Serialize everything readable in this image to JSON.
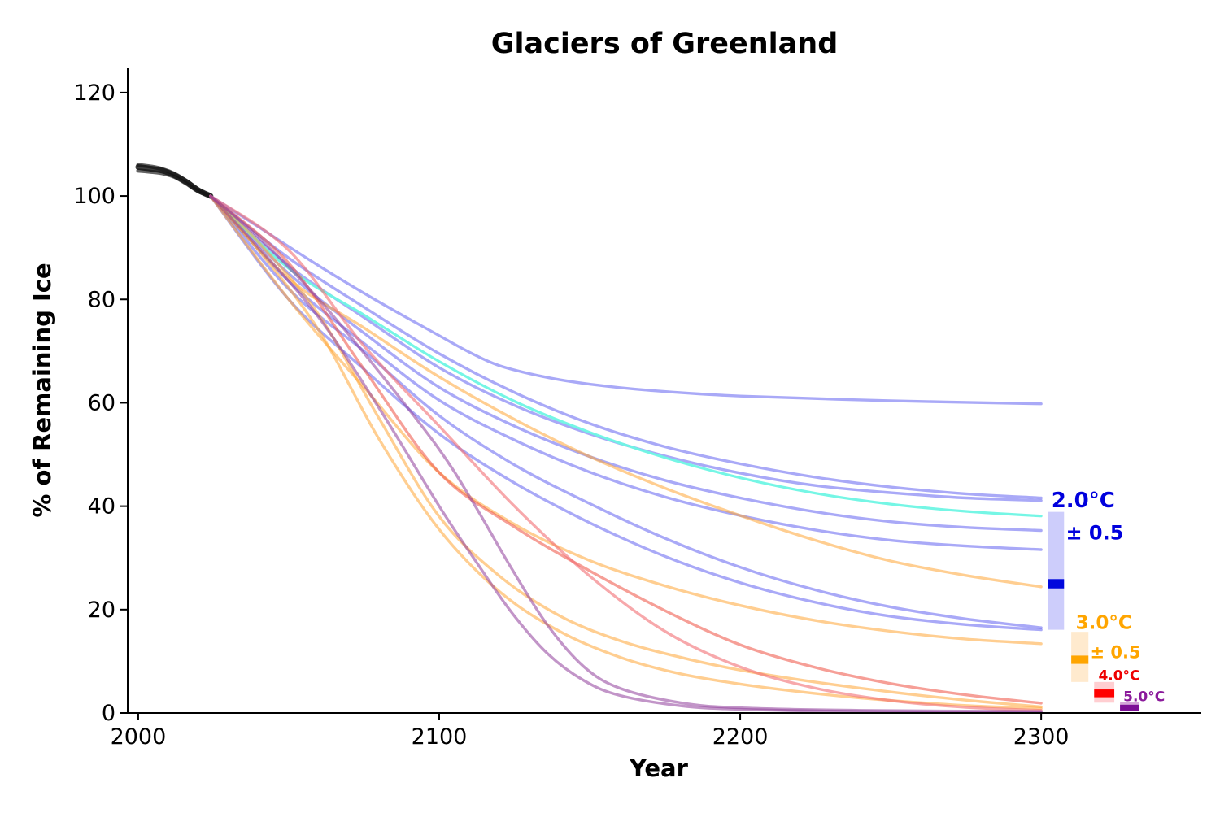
{
  "chart_data": {
    "type": "line",
    "title": "Glaciers of Greenland",
    "xlabel": "Year",
    "ylabel": "% of Remaining Ice",
    "xlim": [
      1996.5,
      2353.2
    ],
    "ylim": [
      0,
      124.7
    ],
    "x_ticks": [
      2000,
      2100,
      2200,
      2300
    ],
    "y_ticks": [
      0,
      20,
      40,
      60,
      80,
      100,
      120
    ],
    "grid": false,
    "axis_color": "#000000",
    "tick_font_size": 27,
    "series": [
      {
        "name": "historical-1",
        "scenario": "historical",
        "color": "rgba(15,15,15,0.8)",
        "width": 7,
        "points": [
          [
            2000,
            105.6
          ],
          [
            2004,
            105.3
          ],
          [
            2008,
            104.9
          ],
          [
            2012,
            104.0
          ],
          [
            2016,
            102.7
          ],
          [
            2020,
            101.1
          ],
          [
            2024,
            100
          ]
        ]
      },
      {
        "name": "historical-2",
        "scenario": "historical",
        "color": "rgba(15,15,15,0.65)",
        "width": 5,
        "points": [
          [
            2000,
            106.0
          ],
          [
            2004,
            105.7
          ],
          [
            2008,
            105.2
          ],
          [
            2012,
            104.3
          ],
          [
            2016,
            102.9
          ],
          [
            2020,
            101.2
          ],
          [
            2024,
            100
          ]
        ]
      },
      {
        "name": "historical-3",
        "scenario": "historical",
        "color": "rgba(15,15,15,0.65)",
        "width": 5,
        "points": [
          [
            2000,
            104.9
          ],
          [
            2004,
            104.7
          ],
          [
            2008,
            104.4
          ],
          [
            2012,
            103.7
          ],
          [
            2016,
            102.4
          ],
          [
            2020,
            100.9
          ],
          [
            2024,
            100
          ]
        ]
      },
      {
        "name": "2.0C-run-1",
        "scenario": "2.0C",
        "color": "rgba(98,98,240,0.55)",
        "width": 3.4,
        "points": [
          [
            2024,
            100
          ],
          [
            2040,
            94
          ],
          [
            2060,
            86.5
          ],
          [
            2080,
            79.5
          ],
          [
            2100,
            73
          ],
          [
            2110,
            69.8
          ],
          [
            2120,
            67.2
          ],
          [
            2135,
            65.0
          ],
          [
            2150,
            63.6
          ],
          [
            2170,
            62.4
          ],
          [
            2200,
            61.3
          ],
          [
            2250,
            60.4
          ],
          [
            2300,
            59.8
          ]
        ]
      },
      {
        "name": "2.0C-run-2",
        "scenario": "2.0C",
        "color": "rgba(98,98,240,0.55)",
        "width": 3.4,
        "points": [
          [
            2024,
            100
          ],
          [
            2050,
            88
          ],
          [
            2075,
            78.5
          ],
          [
            2100,
            69.5
          ],
          [
            2125,
            62
          ],
          [
            2150,
            56
          ],
          [
            2175,
            51.5
          ],
          [
            2200,
            48.2
          ],
          [
            2225,
            45.6
          ],
          [
            2250,
            43.7
          ],
          [
            2275,
            42.4
          ],
          [
            2300,
            41.6
          ]
        ]
      },
      {
        "name": "2.0C-run-3",
        "scenario": "2.0C",
        "color": "rgba(98,98,240,0.55)",
        "width": 3.4,
        "points": [
          [
            2024,
            100
          ],
          [
            2050,
            86.5
          ],
          [
            2075,
            76.5
          ],
          [
            2100,
            66.8
          ],
          [
            2125,
            59.5
          ],
          [
            2150,
            54
          ],
          [
            2175,
            49.7
          ],
          [
            2200,
            46.4
          ],
          [
            2225,
            44
          ],
          [
            2250,
            42.6
          ],
          [
            2275,
            41.6
          ],
          [
            2300,
            41.1
          ]
        ]
      },
      {
        "name": "2.0C-run-4",
        "scenario": "2.0C",
        "color": "rgba(98,98,240,0.55)",
        "width": 3.4,
        "points": [
          [
            2024,
            100
          ],
          [
            2050,
            85
          ],
          [
            2075,
            73.5
          ],
          [
            2100,
            63
          ],
          [
            2125,
            55.5
          ],
          [
            2150,
            49.6
          ],
          [
            2175,
            45
          ],
          [
            2200,
            41.6
          ],
          [
            2225,
            38.9
          ],
          [
            2250,
            37
          ],
          [
            2275,
            35.9
          ],
          [
            2300,
            35.3
          ]
        ]
      },
      {
        "name": "2.0C-run-5",
        "scenario": "2.0C",
        "color": "rgba(98,98,240,0.55)",
        "width": 3.4,
        "points": [
          [
            2024,
            100
          ],
          [
            2050,
            83.5
          ],
          [
            2075,
            71.5
          ],
          [
            2100,
            60.5
          ],
          [
            2125,
            52.8
          ],
          [
            2150,
            46.6
          ],
          [
            2175,
            41.8
          ],
          [
            2200,
            38.2
          ],
          [
            2225,
            35.4
          ],
          [
            2250,
            33.4
          ],
          [
            2275,
            32.3
          ],
          [
            2300,
            31.6
          ]
        ]
      },
      {
        "name": "2.0C-run-6",
        "scenario": "2.0C",
        "color": "rgba(98,98,240,0.55)",
        "width": 3.4,
        "points": [
          [
            2024,
            100
          ],
          [
            2050,
            82
          ],
          [
            2075,
            70
          ],
          [
            2100,
            57.5
          ],
          [
            2125,
            48
          ],
          [
            2150,
            40.5
          ],
          [
            2175,
            33.8
          ],
          [
            2200,
            28.2
          ],
          [
            2225,
            23.8
          ],
          [
            2250,
            20.5
          ],
          [
            2275,
            18.2
          ],
          [
            2300,
            16.5
          ]
        ]
      },
      {
        "name": "2.0C-run-7",
        "scenario": "2.0C",
        "color": "rgba(98,98,240,0.55)",
        "width": 3.4,
        "points": [
          [
            2024,
            100
          ],
          [
            2050,
            80
          ],
          [
            2075,
            66.5
          ],
          [
            2100,
            54
          ],
          [
            2125,
            44.5
          ],
          [
            2150,
            36.8
          ],
          [
            2175,
            30.3
          ],
          [
            2200,
            25.2
          ],
          [
            2225,
            21.4
          ],
          [
            2250,
            18.7
          ],
          [
            2275,
            17.1
          ],
          [
            2300,
            16.1
          ]
        ]
      },
      {
        "name": "2.0C-run-cyan",
        "scenario": "2.0C",
        "color": "rgba(110,246,228,0.95)",
        "width": 3.2,
        "points": [
          [
            2024,
            100
          ],
          [
            2050,
            86
          ],
          [
            2075,
            77
          ],
          [
            2100,
            68
          ],
          [
            2125,
            60.3
          ],
          [
            2150,
            54.3
          ],
          [
            2175,
            49.4
          ],
          [
            2200,
            45.5
          ],
          [
            2225,
            42.5
          ],
          [
            2250,
            40.4
          ],
          [
            2275,
            39
          ],
          [
            2300,
            38.1
          ]
        ]
      },
      {
        "name": "3.0C-run-1",
        "scenario": "3.0C",
        "color": "rgba(255,165,55,0.55)",
        "width": 3.4,
        "points": [
          [
            2024,
            100
          ],
          [
            2050,
            84
          ],
          [
            2075,
            74.5
          ],
          [
            2100,
            65
          ],
          [
            2125,
            56.8
          ],
          [
            2150,
            49.6
          ],
          [
            2175,
            43.5
          ],
          [
            2200,
            38.2
          ],
          [
            2225,
            33.4
          ],
          [
            2250,
            29.4
          ],
          [
            2275,
            26.6
          ],
          [
            2300,
            24.4
          ]
        ]
      },
      {
        "name": "3.0C-run-2",
        "scenario": "3.0C",
        "color": "rgba(255,165,55,0.55)",
        "width": 3.4,
        "points": [
          [
            2024,
            100
          ],
          [
            2050,
            80
          ],
          [
            2075,
            63
          ],
          [
            2100,
            46.5
          ],
          [
            2125,
            36.5
          ],
          [
            2150,
            29.5
          ],
          [
            2175,
            24.6
          ],
          [
            2200,
            20.8
          ],
          [
            2225,
            17.9
          ],
          [
            2250,
            15.8
          ],
          [
            2275,
            14.3
          ],
          [
            2300,
            13.4
          ]
        ]
      },
      {
        "name": "3.0C-run-3",
        "scenario": "3.0C",
        "color": "rgba(255,165,55,0.55)",
        "width": 3.4,
        "points": [
          [
            2024,
            100
          ],
          [
            2040,
            91
          ],
          [
            2060,
            77
          ],
          [
            2080,
            57
          ],
          [
            2100,
            38
          ],
          [
            2120,
            26.5
          ],
          [
            2140,
            18.8
          ],
          [
            2160,
            14
          ],
          [
            2180,
            10.8
          ],
          [
            2200,
            8.3
          ],
          [
            2220,
            6.4
          ],
          [
            2240,
            4.8
          ],
          [
            2260,
            3.4
          ],
          [
            2280,
            2.2
          ],
          [
            2300,
            1.2
          ]
        ]
      },
      {
        "name": "3.0C-run-4",
        "scenario": "3.0C",
        "color": "rgba(255,165,55,0.55)",
        "width": 3.4,
        "points": [
          [
            2024,
            100
          ],
          [
            2040,
            89.5
          ],
          [
            2060,
            74
          ],
          [
            2080,
            53
          ],
          [
            2100,
            35.5
          ],
          [
            2120,
            23.5
          ],
          [
            2140,
            15.8
          ],
          [
            2160,
            10.8
          ],
          [
            2180,
            7.6
          ],
          [
            2200,
            5.6
          ],
          [
            2220,
            4.1
          ],
          [
            2240,
            2.9
          ],
          [
            2260,
            2.0
          ],
          [
            2280,
            1.3
          ],
          [
            2300,
            0.9
          ]
        ]
      },
      {
        "name": "4.0C-run-1",
        "scenario": "4.0C",
        "color": "rgba(238,80,65,0.55)",
        "width": 3.4,
        "points": [
          [
            2024,
            100
          ],
          [
            2050,
            87
          ],
          [
            2075,
            66.5
          ],
          [
            2100,
            46.5
          ],
          [
            2125,
            36
          ],
          [
            2150,
            27.5
          ],
          [
            2175,
            19.8
          ],
          [
            2200,
            13.2
          ],
          [
            2225,
            8.8
          ],
          [
            2250,
            5.7
          ],
          [
            2275,
            3.5
          ],
          [
            2300,
            1.9
          ]
        ]
      },
      {
        "name": "4.0C-run-2",
        "scenario": "4.0C",
        "color": "rgba(242,110,115,0.6)",
        "width": 3.4,
        "points": [
          [
            2024,
            100
          ],
          [
            2050,
            89.5
          ],
          [
            2075,
            71
          ],
          [
            2100,
            55.5
          ],
          [
            2125,
            40
          ],
          [
            2150,
            26.5
          ],
          [
            2175,
            15.8
          ],
          [
            2200,
            8.9
          ],
          [
            2225,
            4.8
          ],
          [
            2250,
            2.4
          ],
          [
            2275,
            1.1
          ],
          [
            2300,
            0.5
          ]
        ]
      },
      {
        "name": "5.0C-run-1",
        "scenario": "5.0C",
        "color": "rgba(143,62,155,0.55)",
        "width": 3.4,
        "points": [
          [
            2024,
            100
          ],
          [
            2040,
            92
          ],
          [
            2060,
            80
          ],
          [
            2080,
            66
          ],
          [
            2100,
            51
          ],
          [
            2112,
            40
          ],
          [
            2124,
            28
          ],
          [
            2136,
            17
          ],
          [
            2148,
            9
          ],
          [
            2160,
            4.8
          ],
          [
            2180,
            2.0
          ],
          [
            2200,
            1.0
          ],
          [
            2240,
            0.5
          ],
          [
            2300,
            0.3
          ]
        ]
      },
      {
        "name": "5.0C-run-2",
        "scenario": "5.0C",
        "color": "rgba(143,62,155,0.55)",
        "width": 3.4,
        "points": [
          [
            2024,
            100
          ],
          [
            2040,
            90
          ],
          [
            2060,
            76.5
          ],
          [
            2080,
            59
          ],
          [
            2100,
            40
          ],
          [
            2112,
            29.5
          ],
          [
            2124,
            19.5
          ],
          [
            2136,
            11.5
          ],
          [
            2148,
            6.3
          ],
          [
            2160,
            3.4
          ],
          [
            2180,
            1.4
          ],
          [
            2200,
            0.7
          ],
          [
            2240,
            0.3
          ],
          [
            2300,
            0.15
          ]
        ]
      }
    ],
    "annotations": [
      {
        "name": "2.0C",
        "label": "2.0°C",
        "pm_label": "± 0.5",
        "text_color": "#0000dd",
        "band_color": "rgba(123,123,245,0.38)",
        "mean_color": "#0008dd",
        "years": [
          2302.2,
          2307.6
        ],
        "range": [
          16.1,
          38.9
        ],
        "mean": 25.0,
        "mean_half_height": 0.9,
        "label_pos": {
          "year": 2303.4,
          "value": 39.8
        },
        "label_size": 26,
        "pm_pos": {
          "year": 2308.2,
          "value": 33.6
        },
        "pm_size": 24
      },
      {
        "name": "3.0C",
        "label": "3.0°C",
        "pm_label": "± 0.5",
        "text_color": "#ffa500",
        "band_color": "rgba(255,170,60,0.25)",
        "mean_color": "#ffa500",
        "years": [
          2310.0,
          2315.7
        ],
        "range": [
          6.0,
          15.7
        ],
        "mean": 10.3,
        "mean_half_height": 0.8,
        "label_pos": {
          "year": 2311.5,
          "value": 16.3
        },
        "label_size": 23,
        "pm_pos": {
          "year": 2316.3,
          "value": 10.6
        },
        "pm_size": 21
      },
      {
        "name": "4.0C",
        "label": "4.0°C",
        "pm_label": null,
        "text_color": "#ee0000",
        "band_color": "rgba(255,80,90,0.28)",
        "mean_color": "#ff0000",
        "years": [
          2317.6,
          2324.3
        ],
        "range": [
          2.0,
          6.0
        ],
        "mean": 3.8,
        "mean_half_height": 0.75,
        "label_pos": {
          "year": 2319.0,
          "value": 6.4
        },
        "label_size": 17,
        "pm_pos": null,
        "pm_size": 0
      },
      {
        "name": "5.0C",
        "label": "5.0°C",
        "pm_label": null,
        "text_color": "#8b1a9b",
        "band_color": "rgba(160,60,170,0.45)",
        "mean_color": "#7c0f96",
        "years": [
          2326.2,
          2332.4
        ],
        "range": [
          0.35,
          2.1
        ],
        "mean": 1.0,
        "mean_half_height": 0.6,
        "label_pos": {
          "year": 2327.3,
          "value": 2.3
        },
        "label_size": 17,
        "pm_pos": null,
        "pm_size": 0
      }
    ]
  }
}
